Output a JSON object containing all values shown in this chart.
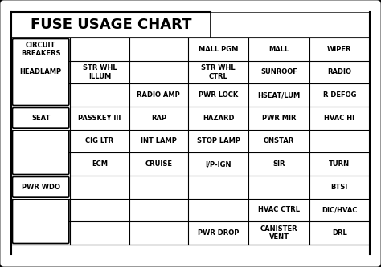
{
  "title": "FUSE USAGE CHART",
  "title_fontsize": 13,
  "cell_fontsize": 6,
  "cell_data": [
    [
      0,
      0,
      "CIRCUIT\nBREAKERS"
    ],
    [
      0,
      3,
      "MALL PGM"
    ],
    [
      0,
      4,
      "MALL"
    ],
    [
      0,
      5,
      "WIPER"
    ],
    [
      1,
      1,
      "STR WHL\nILLUM"
    ],
    [
      1,
      3,
      "STR WHL\nCTRL"
    ],
    [
      1,
      4,
      "SUNROOF"
    ],
    [
      1,
      5,
      "RADIO"
    ],
    [
      2,
      2,
      "RADIO AMP"
    ],
    [
      2,
      3,
      "PWR LOCK"
    ],
    [
      2,
      4,
      "HSEAT/LUM"
    ],
    [
      2,
      5,
      "R DEFOG"
    ],
    [
      3,
      1,
      "PASSKEY III"
    ],
    [
      3,
      2,
      "RAP"
    ],
    [
      3,
      3,
      "HAZARD"
    ],
    [
      3,
      4,
      "PWR MIR"
    ],
    [
      3,
      5,
      "HVAC HI"
    ],
    [
      4,
      1,
      "CIG LTR"
    ],
    [
      4,
      2,
      "INT LAMP"
    ],
    [
      4,
      3,
      "STOP LAMP"
    ],
    [
      4,
      4,
      "ONSTAR"
    ],
    [
      5,
      1,
      "ECM"
    ],
    [
      5,
      2,
      "CRUISE"
    ],
    [
      5,
      3,
      "I/P-IGN"
    ],
    [
      5,
      4,
      "SIR"
    ],
    [
      5,
      5,
      "TURN"
    ],
    [
      6,
      5,
      "BTSI"
    ],
    [
      7,
      4,
      "HVAC CTRL"
    ],
    [
      7,
      5,
      "DIC/HVAC"
    ],
    [
      8,
      3,
      "PWR DROP"
    ],
    [
      8,
      4,
      "CANISTER\nVENT"
    ],
    [
      8,
      5,
      "DRL"
    ]
  ],
  "boxed_cells": [
    [
      0,
      2,
      "HEADLAMP"
    ],
    [
      3,
      3,
      "SEAT"
    ],
    [
      4,
      5,
      ""
    ],
    [
      6,
      6,
      "PWR WDO"
    ],
    [
      7,
      8,
      ""
    ]
  ]
}
